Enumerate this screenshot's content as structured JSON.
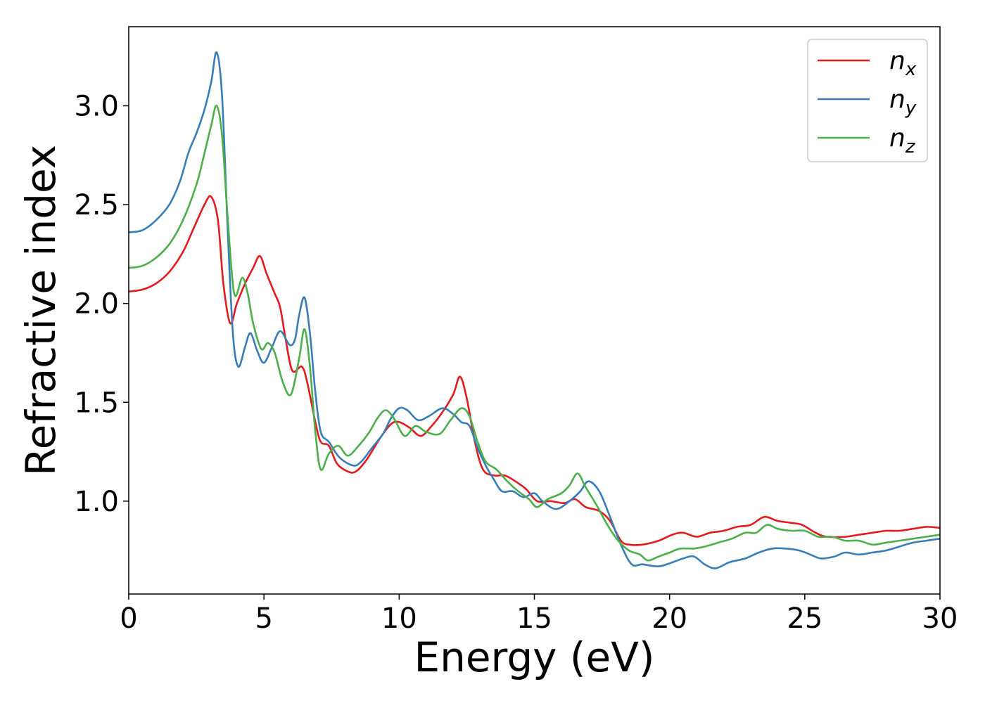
{
  "chart_data": {
    "type": "line",
    "title": "",
    "xlabel": "Energy (eV)",
    "ylabel": "Refractive index",
    "xlim": [
      0,
      30
    ],
    "ylim": [
      0.53,
      3.4
    ],
    "xticks": [
      0,
      5,
      10,
      15,
      20,
      25,
      30
    ],
    "yticks": [
      1.0,
      1.5,
      2.0,
      2.5,
      3.0
    ],
    "xtick_labels": [
      "0",
      "5",
      "10",
      "15",
      "20",
      "25",
      "30"
    ],
    "ytick_labels": [
      "1.0",
      "1.5",
      "2.0",
      "2.5",
      "3.0"
    ],
    "grid": false,
    "legend_position": "top-right",
    "series": [
      {
        "name": "n",
        "subscript": "x",
        "color": "#e41a1c",
        "points": [
          [
            0,
            2.06
          ],
          [
            0.5,
            2.07
          ],
          [
            1,
            2.1
          ],
          [
            1.5,
            2.16
          ],
          [
            2,
            2.26
          ],
          [
            2.4,
            2.38
          ],
          [
            2.8,
            2.5
          ],
          [
            3.05,
            2.54
          ],
          [
            3.3,
            2.42
          ],
          [
            3.5,
            2.1
          ],
          [
            3.75,
            1.9
          ],
          [
            4,
            2.0
          ],
          [
            4.3,
            2.1
          ],
          [
            4.6,
            2.18
          ],
          [
            4.85,
            2.24
          ],
          [
            5.1,
            2.15
          ],
          [
            5.4,
            2.05
          ],
          [
            5.6,
            1.98
          ],
          [
            5.8,
            1.82
          ],
          [
            6.05,
            1.66
          ],
          [
            6.4,
            1.68
          ],
          [
            6.6,
            1.6
          ],
          [
            6.9,
            1.4
          ],
          [
            7.1,
            1.3
          ],
          [
            7.4,
            1.28
          ],
          [
            7.7,
            1.19
          ],
          [
            8.1,
            1.15
          ],
          [
            8.4,
            1.15
          ],
          [
            8.8,
            1.21
          ],
          [
            9.3,
            1.32
          ],
          [
            9.7,
            1.39
          ],
          [
            10,
            1.4
          ],
          [
            10.4,
            1.37
          ],
          [
            10.8,
            1.33
          ],
          [
            11.2,
            1.38
          ],
          [
            11.6,
            1.45
          ],
          [
            12,
            1.54
          ],
          [
            12.25,
            1.63
          ],
          [
            12.5,
            1.52
          ],
          [
            12.8,
            1.3
          ],
          [
            13.1,
            1.16
          ],
          [
            13.5,
            1.13
          ],
          [
            13.9,
            1.13
          ],
          [
            14.3,
            1.1
          ],
          [
            14.7,
            1.06
          ],
          [
            15.1,
            1.0
          ],
          [
            15.6,
            1.0
          ],
          [
            16.1,
            0.99
          ],
          [
            16.5,
            1.01
          ],
          [
            16.9,
            0.97
          ],
          [
            17.4,
            0.95
          ],
          [
            17.8,
            0.9
          ],
          [
            18.2,
            0.8
          ],
          [
            18.5,
            0.78
          ],
          [
            19,
            0.78
          ],
          [
            19.6,
            0.8
          ],
          [
            20.1,
            0.83
          ],
          [
            20.5,
            0.84
          ],
          [
            21,
            0.82
          ],
          [
            21.5,
            0.84
          ],
          [
            22,
            0.85
          ],
          [
            22.5,
            0.87
          ],
          [
            23,
            0.88
          ],
          [
            23.5,
            0.92
          ],
          [
            24,
            0.9
          ],
          [
            24.5,
            0.89
          ],
          [
            24.9,
            0.88
          ],
          [
            25.4,
            0.84
          ],
          [
            25.8,
            0.82
          ],
          [
            26.5,
            0.82
          ],
          [
            27,
            0.83
          ],
          [
            27.5,
            0.84
          ],
          [
            28,
            0.85
          ],
          [
            28.5,
            0.85
          ],
          [
            29,
            0.86
          ],
          [
            29.5,
            0.87
          ],
          [
            30,
            0.865
          ]
        ]
      },
      {
        "name": "n",
        "subscript": "y",
        "color": "#377eb8",
        "points": [
          [
            0,
            2.36
          ],
          [
            0.5,
            2.37
          ],
          [
            1,
            2.42
          ],
          [
            1.5,
            2.5
          ],
          [
            1.9,
            2.62
          ],
          [
            2.2,
            2.76
          ],
          [
            2.5,
            2.86
          ],
          [
            2.8,
            2.98
          ],
          [
            3.05,
            3.12
          ],
          [
            3.25,
            3.27
          ],
          [
            3.45,
            3.05
          ],
          [
            3.65,
            2.4
          ],
          [
            3.85,
            1.85
          ],
          [
            4.05,
            1.68
          ],
          [
            4.3,
            1.78
          ],
          [
            4.5,
            1.85
          ],
          [
            4.75,
            1.76
          ],
          [
            5.0,
            1.7
          ],
          [
            5.3,
            1.78
          ],
          [
            5.6,
            1.86
          ],
          [
            5.95,
            1.79
          ],
          [
            6.15,
            1.82
          ],
          [
            6.3,
            1.94
          ],
          [
            6.5,
            2.03
          ],
          [
            6.7,
            1.85
          ],
          [
            6.9,
            1.55
          ],
          [
            7.1,
            1.35
          ],
          [
            7.4,
            1.3
          ],
          [
            7.8,
            1.22
          ],
          [
            8.3,
            1.18
          ],
          [
            8.6,
            1.2
          ],
          [
            9.0,
            1.27
          ],
          [
            9.4,
            1.34
          ],
          [
            9.7,
            1.42
          ],
          [
            10,
            1.47
          ],
          [
            10.3,
            1.46
          ],
          [
            10.7,
            1.41
          ],
          [
            11.1,
            1.43
          ],
          [
            11.6,
            1.47
          ],
          [
            12.0,
            1.44
          ],
          [
            12.3,
            1.4
          ],
          [
            12.6,
            1.38
          ],
          [
            12.9,
            1.27
          ],
          [
            13.2,
            1.18
          ],
          [
            13.5,
            1.11
          ],
          [
            13.8,
            1.05
          ],
          [
            14.2,
            1.05
          ],
          [
            14.6,
            1.02
          ],
          [
            15.0,
            1.04
          ],
          [
            15.3,
            1.0
          ],
          [
            15.8,
            0.96
          ],
          [
            16.3,
            1.0
          ],
          [
            16.7,
            1.05
          ],
          [
            17.0,
            1.1
          ],
          [
            17.4,
            1.05
          ],
          [
            17.8,
            0.92
          ],
          [
            18.2,
            0.78
          ],
          [
            18.6,
            0.68
          ],
          [
            19.0,
            0.68
          ],
          [
            19.6,
            0.67
          ],
          [
            20.1,
            0.69
          ],
          [
            20.5,
            0.71
          ],
          [
            20.9,
            0.72
          ],
          [
            21.3,
            0.68
          ],
          [
            21.7,
            0.66
          ],
          [
            22.2,
            0.69
          ],
          [
            22.8,
            0.71
          ],
          [
            23.3,
            0.74
          ],
          [
            23.8,
            0.76
          ],
          [
            24.3,
            0.76
          ],
          [
            24.8,
            0.75
          ],
          [
            25.2,
            0.73
          ],
          [
            25.6,
            0.71
          ],
          [
            26.1,
            0.72
          ],
          [
            26.5,
            0.74
          ],
          [
            27.0,
            0.73
          ],
          [
            27.5,
            0.74
          ],
          [
            28.0,
            0.75
          ],
          [
            28.5,
            0.77
          ],
          [
            29,
            0.79
          ],
          [
            29.5,
            0.8
          ],
          [
            30,
            0.81
          ]
        ]
      },
      {
        "name": "n",
        "subscript": "z",
        "color": "#4daf4a",
        "points": [
          [
            0,
            2.18
          ],
          [
            0.5,
            2.19
          ],
          [
            1,
            2.23
          ],
          [
            1.5,
            2.3
          ],
          [
            2,
            2.42
          ],
          [
            2.5,
            2.6
          ],
          [
            2.8,
            2.76
          ],
          [
            3.05,
            2.9
          ],
          [
            3.25,
            3.0
          ],
          [
            3.45,
            2.85
          ],
          [
            3.65,
            2.45
          ],
          [
            3.9,
            2.05
          ],
          [
            4.2,
            2.13
          ],
          [
            4.4,
            2.05
          ],
          [
            4.6,
            1.9
          ],
          [
            4.9,
            1.77
          ],
          [
            5.15,
            1.8
          ],
          [
            5.4,
            1.75
          ],
          [
            5.7,
            1.6
          ],
          [
            6.0,
            1.54
          ],
          [
            6.3,
            1.72
          ],
          [
            6.5,
            1.87
          ],
          [
            6.7,
            1.68
          ],
          [
            6.9,
            1.35
          ],
          [
            7.1,
            1.16
          ],
          [
            7.4,
            1.24
          ],
          [
            7.75,
            1.28
          ],
          [
            8.1,
            1.23
          ],
          [
            8.5,
            1.28
          ],
          [
            8.9,
            1.35
          ],
          [
            9.2,
            1.42
          ],
          [
            9.5,
            1.46
          ],
          [
            9.8,
            1.42
          ],
          [
            10.2,
            1.33
          ],
          [
            10.6,
            1.38
          ],
          [
            11.0,
            1.35
          ],
          [
            11.5,
            1.34
          ],
          [
            11.9,
            1.41
          ],
          [
            12.3,
            1.47
          ],
          [
            12.6,
            1.43
          ],
          [
            12.9,
            1.3
          ],
          [
            13.2,
            1.2
          ],
          [
            13.6,
            1.16
          ],
          [
            14.0,
            1.1
          ],
          [
            14.4,
            1.05
          ],
          [
            14.8,
            1.01
          ],
          [
            15.1,
            0.97
          ],
          [
            15.5,
            1.01
          ],
          [
            16.0,
            1.04
          ],
          [
            16.3,
            1.08
          ],
          [
            16.6,
            1.14
          ],
          [
            16.9,
            1.07
          ],
          [
            17.3,
            0.98
          ],
          [
            17.7,
            0.88
          ],
          [
            18.1,
            0.8
          ],
          [
            18.5,
            0.75
          ],
          [
            18.9,
            0.73
          ],
          [
            19.2,
            0.7
          ],
          [
            19.6,
            0.72
          ],
          [
            20.0,
            0.74
          ],
          [
            20.4,
            0.76
          ],
          [
            20.9,
            0.76
          ],
          [
            21.3,
            0.77
          ],
          [
            21.8,
            0.79
          ],
          [
            22.3,
            0.81
          ],
          [
            22.8,
            0.84
          ],
          [
            23.2,
            0.84
          ],
          [
            23.6,
            0.88
          ],
          [
            24.0,
            0.86
          ],
          [
            24.5,
            0.85
          ],
          [
            25.0,
            0.85
          ],
          [
            25.5,
            0.82
          ],
          [
            26.0,
            0.82
          ],
          [
            26.5,
            0.8
          ],
          [
            27.0,
            0.8
          ],
          [
            27.5,
            0.78
          ],
          [
            28.0,
            0.79
          ],
          [
            28.5,
            0.8
          ],
          [
            29.0,
            0.81
          ],
          [
            29.5,
            0.82
          ],
          [
            30,
            0.83
          ]
        ]
      }
    ]
  }
}
